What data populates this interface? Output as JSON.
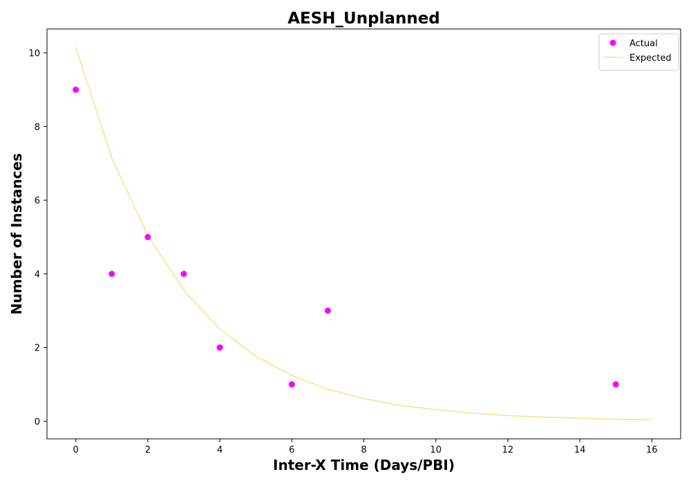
{
  "chart_data": {
    "type": "scatter",
    "title": "AESH_Unplanned",
    "xlabel": "Inter-X Time (Days/PBI)",
    "ylabel": "Number of Instances",
    "xlim": [
      -0.8,
      16.8
    ],
    "ylim": [
      -0.48,
      10.65
    ],
    "xticks": [
      0,
      2,
      4,
      6,
      8,
      10,
      12,
      14,
      16
    ],
    "yticks": [
      0,
      2,
      4,
      6,
      8,
      10
    ],
    "grid": false,
    "legend_position": "top-right",
    "series": [
      {
        "name": "Actual",
        "kind": "scatter",
        "color": "#ff00ff",
        "x": [
          0,
          1,
          2,
          3,
          4,
          6,
          7,
          15
        ],
        "y": [
          9,
          4,
          5,
          4,
          2,
          1,
          3,
          1
        ]
      },
      {
        "name": "Expected",
        "kind": "line",
        "color": "#f0e68c",
        "x": [
          0,
          1,
          2,
          3,
          4,
          5,
          6,
          7,
          8,
          9,
          10,
          11,
          12,
          13,
          14,
          15,
          16
        ],
        "y": [
          10.15,
          7.15,
          5.04,
          3.55,
          2.5,
          1.76,
          1.24,
          0.87,
          0.61,
          0.43,
          0.31,
          0.22,
          0.15,
          0.11,
          0.08,
          0.05,
          0.04
        ]
      }
    ]
  }
}
